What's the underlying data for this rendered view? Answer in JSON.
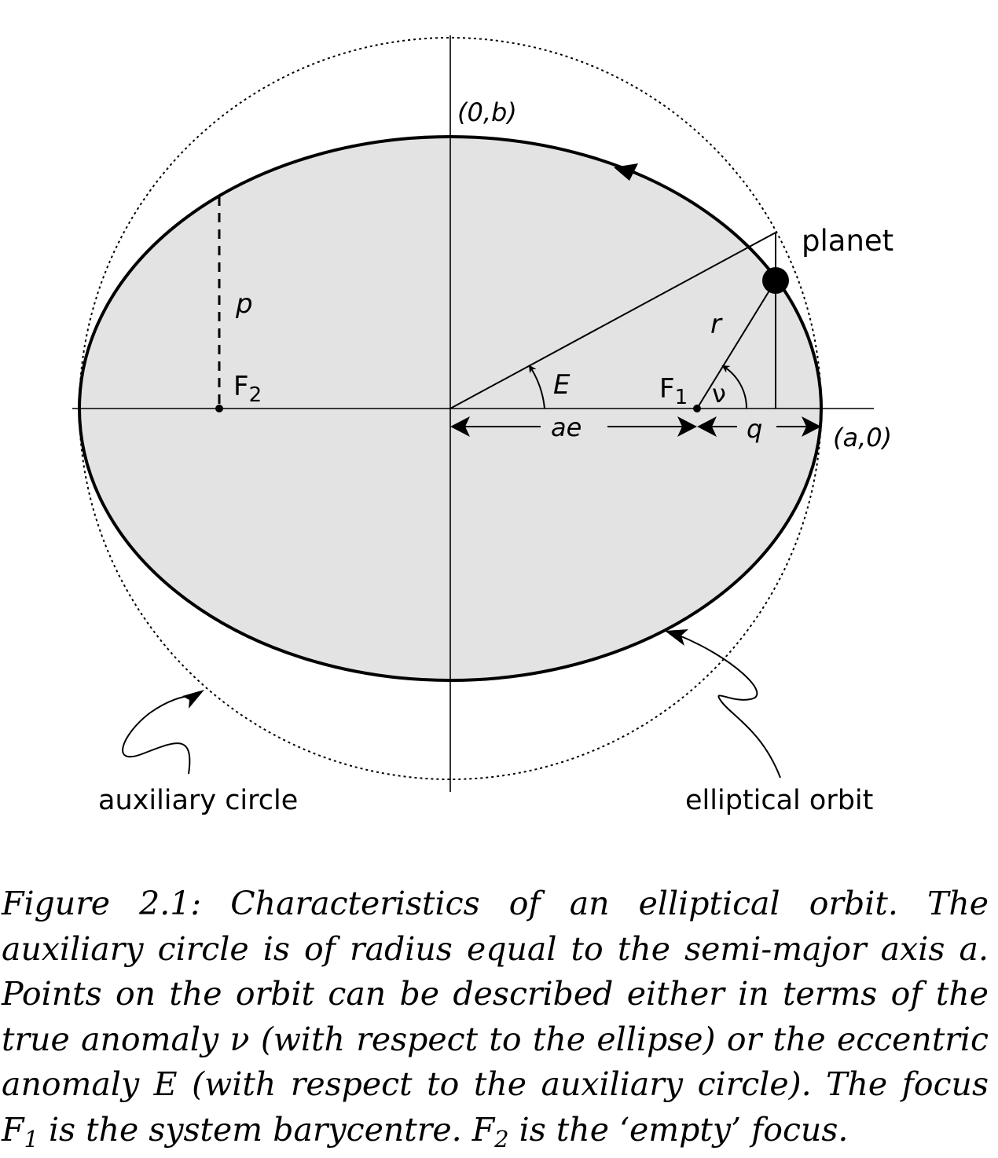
{
  "diagram": {
    "labels": {
      "semi_minor_point": "(0,b)",
      "semi_major_point": "(a,0)",
      "planet": "planet",
      "radius": "r",
      "semi_latus_rectum": "p",
      "eccentric_anomaly": "E",
      "true_anomaly": "ν",
      "focus_1": "F",
      "focus_1_sub": "1",
      "focus_2": "F",
      "focus_2_sub": "2",
      "focal_offset": "ae",
      "pericentre_distance": "q",
      "auxiliary_circle": "auxiliary circle",
      "elliptical_orbit": "elliptical orbit"
    },
    "colors": {
      "ellipse_fill": "#e3e3e3",
      "stroke": "#000000"
    }
  },
  "caption": {
    "p1": "Figure 2.1: Characteristics of an elliptical orbit. The auxiliary circle is of radius equal to the semi-major axis ",
    "a_var": "a",
    "p2": ". Points on the orbit can be described either in terms of the true anomaly ",
    "nu_var": "ν",
    "p3": " (with respect to the ellipse) or the eccentric anomaly ",
    "e_var": "E",
    "p4": " (with respect to the auxiliary circle). The focus ",
    "f1": "F",
    "f1_sub": "1",
    "p5": " is the system barycentre. ",
    "f2": "F",
    "f2_sub": "2",
    "p6": " is the ‘empty’ focus."
  }
}
